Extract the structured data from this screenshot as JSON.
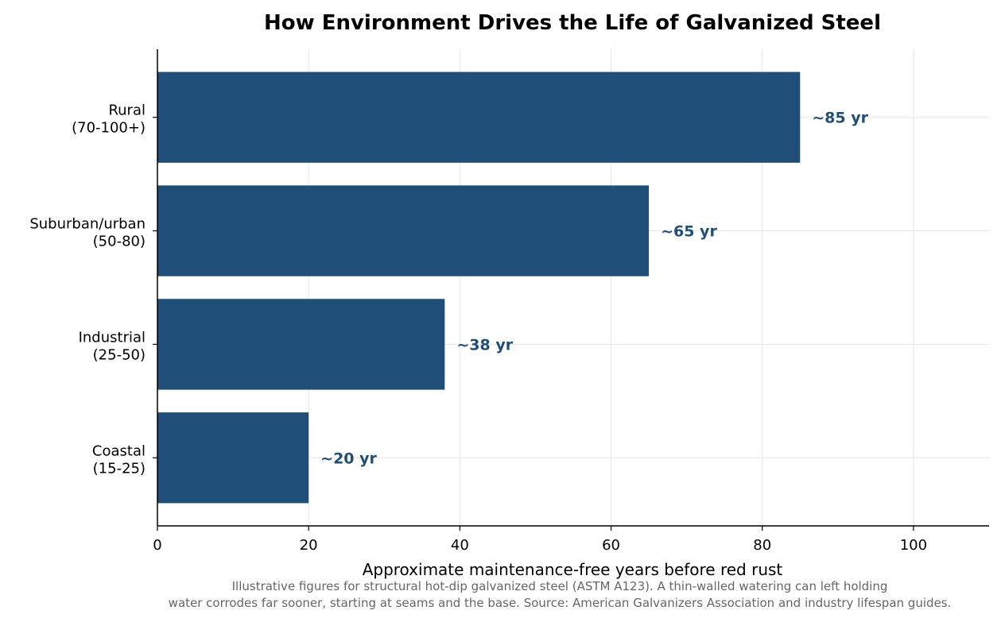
{
  "chart_data": {
    "type": "bar",
    "orientation": "horizontal",
    "title": "How Environment Drives the Life of Galvanized Steel",
    "xlabel": "Approximate maintenance-free years before red rust",
    "ylabel": "",
    "xlim": [
      0,
      110
    ],
    "xticks": [
      0,
      20,
      40,
      60,
      80,
      100
    ],
    "grid": true,
    "categories": [
      {
        "line1": "Rural",
        "line2": "(70-100+)"
      },
      {
        "line1": "Suburban/urban",
        "line2": "(50-80)"
      },
      {
        "line1": "Industrial",
        "line2": "(25-50)"
      },
      {
        "line1": "Coastal",
        "line2": "(15-25)"
      }
    ],
    "values": [
      85,
      65,
      38,
      20
    ],
    "data_labels": [
      "~85 yr",
      "~65 yr",
      "~38 yr",
      "~20 yr"
    ],
    "bar_color": "#1f4e79",
    "label_color": "#1f4e79",
    "grid_color": "#e6e6e6",
    "footnote": [
      "Illustrative figures for structural hot-dip galvanized steel (ASTM A123). A thin-walled watering can left holding",
      "water corrodes far sooner, starting at seams and the base. Source: American Galvanizers Association and industry lifespan guides."
    ]
  }
}
